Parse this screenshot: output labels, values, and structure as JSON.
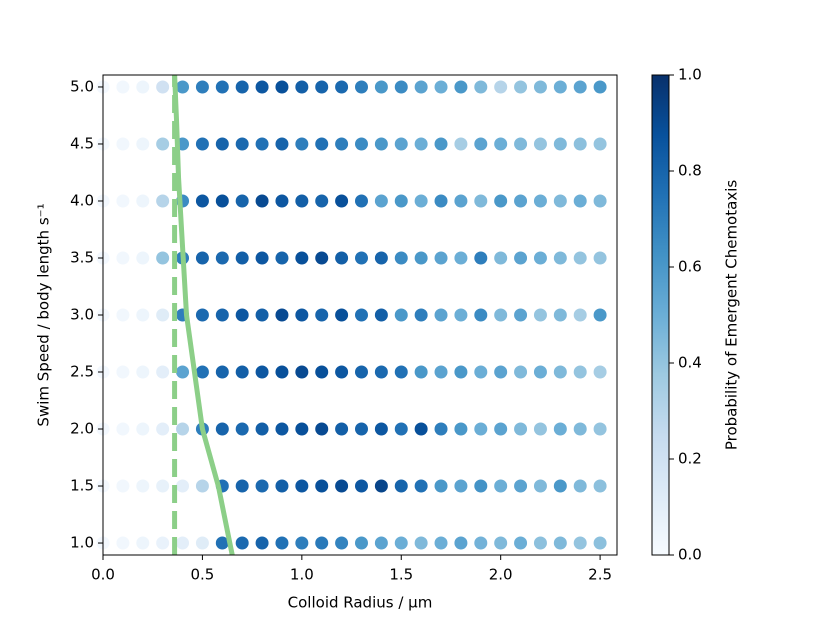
{
  "chart_data": {
    "type": "scatter",
    "xlabel": "Colloid Radius / μm",
    "ylabel": "Swim Speed / body length s⁻¹",
    "colorbar_label": "Probability of Emergent Chemotaxis",
    "colormap": "Blues",
    "x": [
      0.0,
      0.1,
      0.2,
      0.3,
      0.4,
      0.5,
      0.6,
      0.7,
      0.8,
      0.9,
      1.0,
      1.1,
      1.2,
      1.3,
      1.4,
      1.5,
      1.6,
      1.7,
      1.8,
      1.9,
      2.0,
      2.1,
      2.2,
      2.3,
      2.4,
      2.5
    ],
    "y": [
      1.0,
      1.5,
      2.0,
      2.5,
      3.0,
      3.5,
      4.0,
      4.5,
      5.0
    ],
    "values": [
      [
        0.02,
        0.03,
        0.05,
        0.07,
        0.1,
        0.12,
        0.75,
        0.78,
        0.8,
        0.75,
        0.7,
        0.72,
        0.68,
        0.6,
        0.55,
        0.5,
        0.45,
        0.5,
        0.55,
        0.48,
        0.45,
        0.5,
        0.42,
        0.45,
        0.4,
        0.42
      ],
      [
        0.02,
        0.03,
        0.05,
        0.08,
        0.1,
        0.3,
        0.75,
        0.8,
        0.78,
        0.82,
        0.85,
        0.88,
        0.9,
        0.85,
        0.92,
        0.8,
        0.75,
        0.6,
        0.55,
        0.62,
        0.5,
        0.55,
        0.45,
        0.6,
        0.45,
        0.42
      ],
      [
        0.02,
        0.03,
        0.05,
        0.1,
        0.3,
        0.7,
        0.8,
        0.78,
        0.82,
        0.85,
        0.88,
        0.9,
        0.82,
        0.8,
        0.85,
        0.75,
        0.88,
        0.7,
        0.6,
        0.5,
        0.55,
        0.45,
        0.4,
        0.5,
        0.45,
        0.4
      ],
      [
        0.02,
        0.03,
        0.05,
        0.1,
        0.55,
        0.75,
        0.8,
        0.82,
        0.85,
        0.88,
        0.9,
        0.88,
        0.85,
        0.8,
        0.78,
        0.75,
        0.6,
        0.55,
        0.6,
        0.5,
        0.55,
        0.45,
        0.5,
        0.45,
        0.4,
        0.35
      ],
      [
        0.02,
        0.03,
        0.05,
        0.12,
        0.7,
        0.78,
        0.8,
        0.85,
        0.82,
        0.9,
        0.85,
        0.8,
        0.88,
        0.75,
        0.82,
        0.6,
        0.7,
        0.55,
        0.5,
        0.65,
        0.45,
        0.55,
        0.4,
        0.45,
        0.35,
        0.6
      ],
      [
        0.02,
        0.03,
        0.05,
        0.4,
        0.7,
        0.8,
        0.78,
        0.82,
        0.85,
        0.8,
        0.88,
        0.9,
        0.82,
        0.75,
        0.8,
        0.65,
        0.6,
        0.55,
        0.5,
        0.7,
        0.45,
        0.55,
        0.5,
        0.45,
        0.4,
        0.4
      ],
      [
        0.02,
        0.03,
        0.05,
        0.3,
        0.65,
        0.85,
        0.88,
        0.8,
        0.9,
        0.85,
        0.82,
        0.8,
        0.88,
        0.75,
        0.55,
        0.6,
        0.5,
        0.65,
        0.55,
        0.45,
        0.6,
        0.55,
        0.5,
        0.45,
        0.5,
        0.45
      ],
      [
        0.02,
        0.03,
        0.05,
        0.35,
        0.6,
        0.75,
        0.8,
        0.78,
        0.75,
        0.8,
        0.7,
        0.75,
        0.7,
        0.65,
        0.6,
        0.55,
        0.5,
        0.6,
        0.35,
        0.55,
        0.5,
        0.45,
        0.4,
        0.45,
        0.42,
        0.4
      ],
      [
        0.02,
        0.03,
        0.05,
        0.2,
        0.6,
        0.7,
        0.75,
        0.8,
        0.85,
        0.88,
        0.82,
        0.8,
        0.78,
        0.7,
        0.6,
        0.65,
        0.55,
        0.5,
        0.6,
        0.45,
        0.3,
        0.4,
        0.45,
        0.5,
        0.55,
        0.6
      ]
    ],
    "lines": [
      {
        "x": [
          0.36,
          0.37,
          0.38,
          0.4,
          0.42,
          0.46,
          0.5,
          0.58,
          0.65
        ],
        "y": [
          5.105,
          4.7,
          4.2,
          3.6,
          3.0,
          2.5,
          2.0,
          1.5,
          0.895
        ],
        "color": "#8ccf88",
        "dashed": false
      },
      {
        "x": [
          0.36,
          0.36
        ],
        "y": [
          0.895,
          5.105
        ],
        "color": "#8ccf88",
        "dashed": true
      }
    ],
    "xlim": [
      0,
      2.585
    ],
    "ylim": [
      0.895,
      5.105
    ],
    "clim": [
      0,
      1
    ],
    "xticks": [
      {
        "value": 0,
        "label": "0.0"
      },
      0.5,
      {
        "value": 1,
        "label": "1.0"
      },
      1.5,
      {
        "value": 2,
        "label": "2.0"
      },
      2.5
    ],
    "yticks": [
      {
        "value": 1,
        "label": "1.0"
      },
      1.5,
      {
        "value": 2,
        "label": "2.0"
      },
      2.5,
      {
        "value": 3,
        "label": "3.0"
      },
      3.5,
      {
        "value": 4,
        "label": "4.0"
      },
      4.5,
      {
        "value": 5,
        "label": "5.0"
      }
    ],
    "cticks": [
      {
        "value": 0,
        "label": "0.0"
      },
      0.2,
      0.4,
      0.6,
      0.8,
      {
        "value": 1,
        "label": "1.0"
      }
    ]
  }
}
